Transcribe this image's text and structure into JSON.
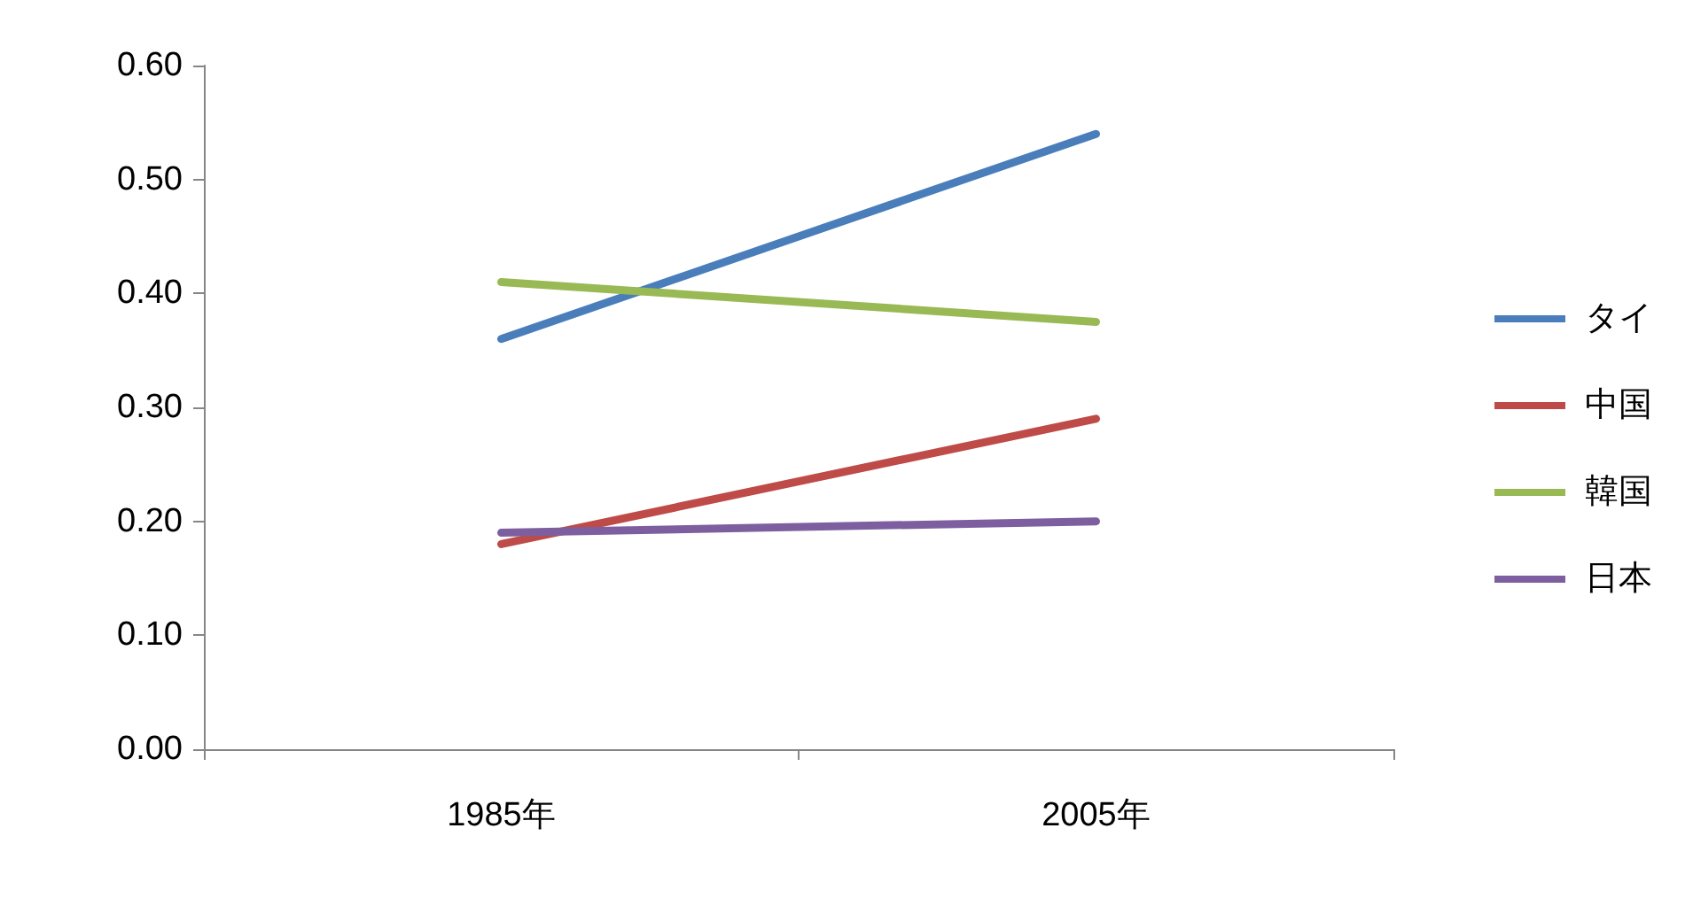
{
  "chart_data": {
    "type": "line",
    "categories": [
      "1985年",
      "2005年"
    ],
    "series": [
      {
        "name": "タイ",
        "color": "#4a7ebb",
        "values": [
          0.36,
          0.54
        ]
      },
      {
        "name": "中国",
        "color": "#be4b48",
        "values": [
          0.18,
          0.29
        ]
      },
      {
        "name": "韓国",
        "color": "#98b954",
        "values": [
          0.41,
          0.375
        ]
      },
      {
        "name": "日本",
        "color": "#7d5fa0",
        "values": [
          0.19,
          0.2
        ]
      }
    ],
    "ylim": [
      0,
      0.6
    ],
    "yticks": [
      {
        "value": 0,
        "label": "0.00"
      },
      {
        "value": 0.1,
        "label": "0.10"
      },
      {
        "value": 0.2,
        "label": "0.20"
      },
      {
        "value": 0.3,
        "label": "0.30"
      },
      {
        "value": 0.4,
        "label": "0.40"
      },
      {
        "value": 0.5,
        "label": "0.50"
      },
      {
        "value": 0.6,
        "label": "0.60"
      }
    ],
    "grid": false,
    "legend": "right",
    "marker": "none",
    "line_style": "solid"
  }
}
